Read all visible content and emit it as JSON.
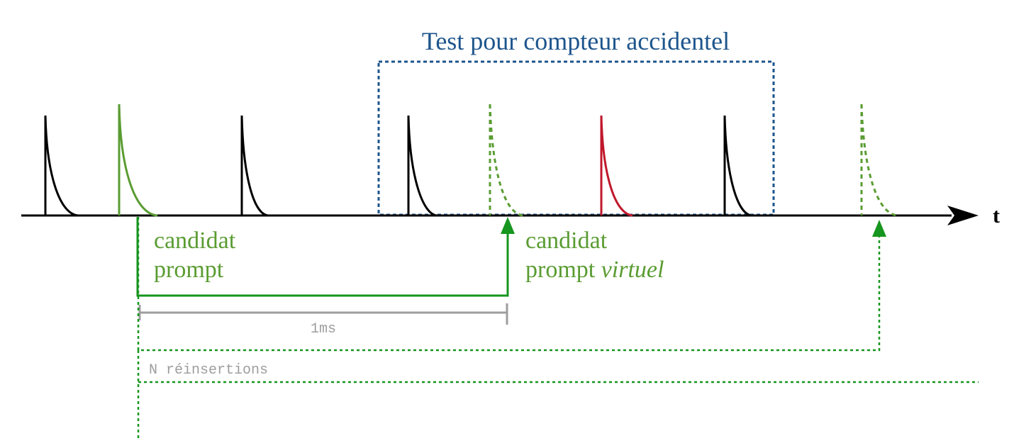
{
  "title": "Test pour compteur accidentel",
  "axis_label": "t",
  "candidate_label_line1": "candidat",
  "candidate_label_line2": "prompt",
  "virtual_label_line1": "candidat",
  "virtual_label_line2_prefix": "prompt ",
  "virtual_label_line2_italic": "virtuel",
  "interval_label": "1ms",
  "reinsertions_label": "N réinsertions",
  "colors": {
    "axis": "#000000",
    "pulse_black": "#000000",
    "pulse_green": "#5a9c32",
    "pulse_red": "#c0182c",
    "arrow_green": "#16961e",
    "window_blue": "#1d558c",
    "interval_gray": "#9e9e9e"
  },
  "icons": [
    "arrow-right-icon",
    "arrow-up-icon"
  ]
}
